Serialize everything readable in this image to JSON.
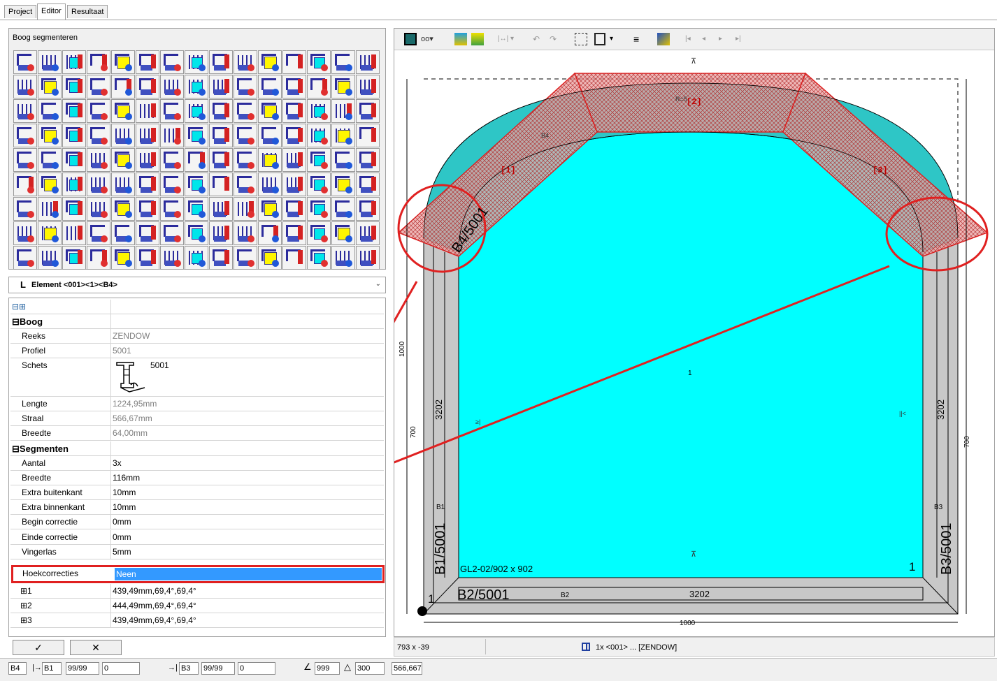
{
  "tabs": [
    {
      "label": "Project",
      "active": false
    },
    {
      "label": "Editor",
      "active": true
    },
    {
      "label": "Resultaat",
      "active": false
    }
  ],
  "toolbox": {
    "title": "Boog segmenteren",
    "tool_count": 135
  },
  "element_select": {
    "value": "Element <001><1><B4>"
  },
  "props": {
    "expand_icons": "⊟⊞",
    "boog": {
      "header": "⊟Boog",
      "reeks": {
        "label": "Reeks",
        "value": "ZENDOW"
      },
      "profiel": {
        "label": "Profiel",
        "value": "5001"
      },
      "schets": {
        "label": "Schets",
        "value": "5001"
      },
      "lengte": {
        "label": "Lengte",
        "value": "1224,95mm"
      },
      "straal": {
        "label": "Straal",
        "value": "566,67mm"
      },
      "breedte": {
        "label": "Breedte",
        "value": "64,00mm"
      }
    },
    "segmenten": {
      "header": "⊟Segmenten",
      "aantal": {
        "label": "Aantal",
        "value": "3x"
      },
      "breedte": {
        "label": "Breedte",
        "value": "116mm"
      },
      "extra_buiten": {
        "label": "Extra buitenkant",
        "value": "10mm"
      },
      "extra_binnen": {
        "label": "Extra binnenkant",
        "value": "10mm"
      },
      "begin": {
        "label": "Begin correctie",
        "value": "0mm"
      },
      "einde": {
        "label": "Einde correctie",
        "value": "0mm"
      },
      "vingerlas": {
        "label": "Vingerlas",
        "value": "5mm"
      },
      "hoek": {
        "label": "Hoekcorrecties",
        "value": "Neen"
      },
      "seg1": {
        "label": "⊞1",
        "value": "439,49mm,69,4°,69,4°"
      },
      "seg2": {
        "label": "⊞2",
        "value": "444,49mm,69,4°,69,4°"
      },
      "seg3": {
        "label": "⊞3",
        "value": "439,49mm,69,4°,69,4°"
      }
    }
  },
  "buttons": {
    "ok": "✓",
    "cancel": "✕"
  },
  "statusbar": {
    "b4": "B4",
    "from_icon": "|→",
    "b1": "B1",
    "v1": "99/99",
    "v2": "0",
    "to_icon": "→|",
    "b3": "B3",
    "v3": "99/99",
    "v4": "0",
    "angle_icon": "∠",
    "angle": "999",
    "tri_icon": "△",
    "tri": "300",
    "radius": "566,667"
  },
  "canvas_status": {
    "coords": "793 x -39",
    "info": "1x <001> ... [ZENDOW]"
  },
  "drawing": {
    "seg1": "[1]",
    "seg2": "[2]",
    "seg3": "[3]",
    "b4_profile": "B4/5001",
    "b4": "B4",
    "b1_profile": "B1/5001",
    "b1": "B1",
    "b2_profile": "B2/5001",
    "b2": "B2",
    "b3_profile": "B3/5001",
    "b3": "B3",
    "glass": "GL2-02/902 x 902",
    "pane_no": "1",
    "center": "1",
    "corner_no": "1",
    "dim_3202": "3202",
    "dim_1000": "1000",
    "dim_700": "700",
    "r_label": "R=5",
    "mark_up": "⊼",
    "mark_left": "≥|",
    "mark_right": "||<"
  },
  "colors": {
    "glass": "#00ffff",
    "frame": "#c0c0c0",
    "highlight": "#e02020",
    "select": "#3399ff",
    "arc_fill": "#e89a9a"
  }
}
